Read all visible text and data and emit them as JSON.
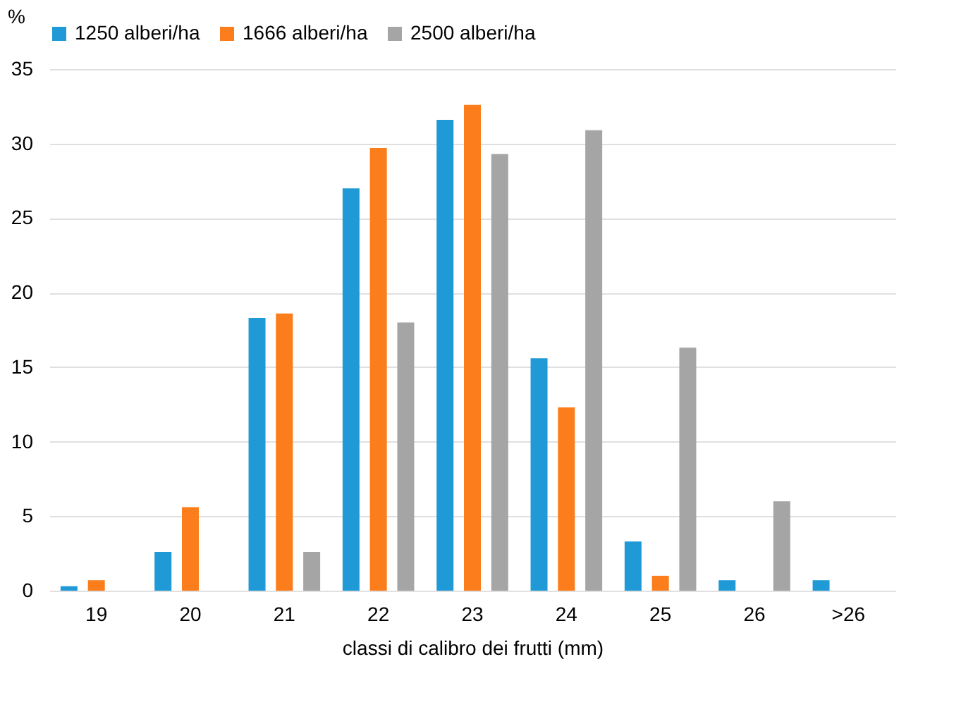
{
  "chart_data": {
    "type": "bar",
    "xlabel": "classi di calibro dei frutti (mm)",
    "ylabel": "%",
    "categories": [
      "19",
      "20",
      "21",
      "22",
      "23",
      "24",
      "25",
      "26",
      ">26"
    ],
    "series": [
      {
        "name": "1250 alberi/ha",
        "color": "#1f9ad6",
        "values": [
          0.3,
          2.6,
          18.3,
          27.0,
          31.6,
          15.6,
          3.3,
          0.7,
          0.7
        ]
      },
      {
        "name": "1666 alberi/ha",
        "color": "#fb7d1c",
        "values": [
          0.7,
          5.6,
          18.6,
          29.7,
          32.6,
          12.3,
          1.0,
          0,
          0
        ]
      },
      {
        "name": "2500 alberi/ha",
        "color": "#a5a5a5",
        "values": [
          0,
          0,
          2.6,
          18.0,
          29.3,
          30.9,
          16.3,
          6.0,
          0
        ]
      }
    ],
    "ylim": [
      0,
      35
    ],
    "yticks": [
      0,
      5,
      10,
      15,
      20,
      25,
      30,
      35
    ],
    "grid": "y",
    "legend": "top"
  }
}
